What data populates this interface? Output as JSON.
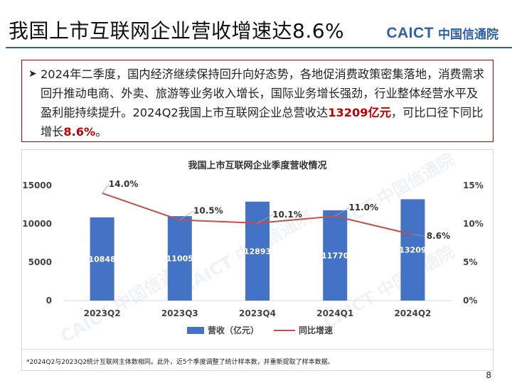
{
  "slide": {
    "title": "我国上市互联网企业营收增速达8.6%",
    "logo_en": "CAICT",
    "logo_cn": "中国信通院",
    "summary_part1": "2024年二季度，国内经济继续保持回升向好态势，各地促消费政策密集落地，消费需求回升推动电商、外卖、旅游等业务收入增长，国际业务增长强劲，行业整体经营水平及盈利能持续提升。2024Q2我国上市互联网企业总营收达",
    "summary_highlight1": "13209亿元",
    "summary_part2": "，可比口径下同比增长",
    "summary_highlight2": "8.6%",
    "summary_part3": "。",
    "footnote": "*2024Q2与2023Q2统计互联网主体数相同。此外，近5个季度调整了统计样本数，并重新提取了样本数据。",
    "page_number": "8",
    "watermark": "CAICT 中国信通院"
  },
  "chart_data": {
    "type": "bar",
    "title": "我国上市互联网企业季度营收情况",
    "categories": [
      "2023Q2",
      "2023Q3",
      "2023Q4",
      "2024Q1",
      "2024Q2"
    ],
    "series": [
      {
        "name": "营收（亿元）",
        "type": "bar",
        "axis": "left",
        "values": [
          10848,
          11005,
          12893,
          11770,
          13209
        ],
        "color": "#4472C4"
      },
      {
        "name": "同比增速",
        "type": "line",
        "axis": "right",
        "values": [
          14.0,
          10.5,
          10.1,
          11.0,
          8.6
        ],
        "labels": [
          "14.0%",
          "10.5%",
          "10.1%",
          "11.0%",
          "8.6%"
        ],
        "color": "#C0504D"
      }
    ],
    "y_left": {
      "min": 0,
      "max": 15000,
      "ticks": [
        "0",
        "5000",
        "10000",
        "15000"
      ],
      "tick_values": [
        0,
        5000,
        10000,
        15000
      ]
    },
    "y_right": {
      "min": 0,
      "max": 15,
      "ticks": [
        "0%",
        "5%",
        "10%",
        "15%"
      ],
      "tick_values": [
        0,
        5,
        10,
        15
      ]
    },
    "grid": false,
    "legend_position": "bottom"
  }
}
